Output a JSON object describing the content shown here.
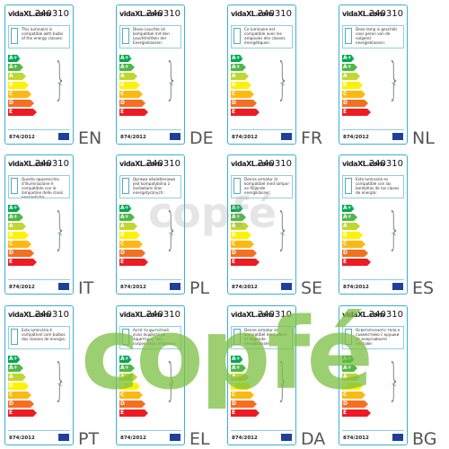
{
  "brand": "vidaXL.com",
  "model": "240310",
  "classes": [
    "A++",
    "A+",
    "A",
    "B",
    "C",
    "D",
    "E"
  ],
  "regulation": "874/2012",
  "watermark": "copfé",
  "labels": [
    {
      "lang": "EN",
      "description": "This luminaire is compatible with bulbs of the energy classes:"
    },
    {
      "lang": "DE",
      "description": "Diese Leuchte ist kompatibel mit den Leuchtmitteln der Energieklassen:"
    },
    {
      "lang": "FR",
      "description": "Ce luminaire est compatible avec les ampoules des classes énergétiques:"
    },
    {
      "lang": "NL",
      "description": "Deze lamp is geschikt voor peren van de volgend energieklassen:"
    },
    {
      "lang": "IT",
      "description": "Questo apparecchio d'illuminazione è compatibile con le lampadine delle classi energetiche:"
    },
    {
      "lang": "PL",
      "description": "Oprawa oświetleniowa jest kompatybilna z żarówkami klas energetycznych:"
    },
    {
      "lang": "SE",
      "description": "Denna armatur är kompatibel med lampor av följande energiklasser:"
    },
    {
      "lang": "ES",
      "description": "Esta luminaria es compatible con las bombillas de las clases de energía:"
    },
    {
      "lang": "PT",
      "description": "Esta luminária é compatível com bulbos das classes de energia:"
    },
    {
      "lang": "EL",
      "description": "Αυτό το φωτιστικό είναι συμβατό με λαμπτήρες των ενεργειακών κλάσεων:"
    },
    {
      "lang": "DA",
      "description": "Denne armatur er kompatibel med pærer af følgende energiklasser:"
    },
    {
      "lang": "BG",
      "description": "Осветителното тяло е съвместимо с крушки от енергийните класове:"
    }
  ]
}
